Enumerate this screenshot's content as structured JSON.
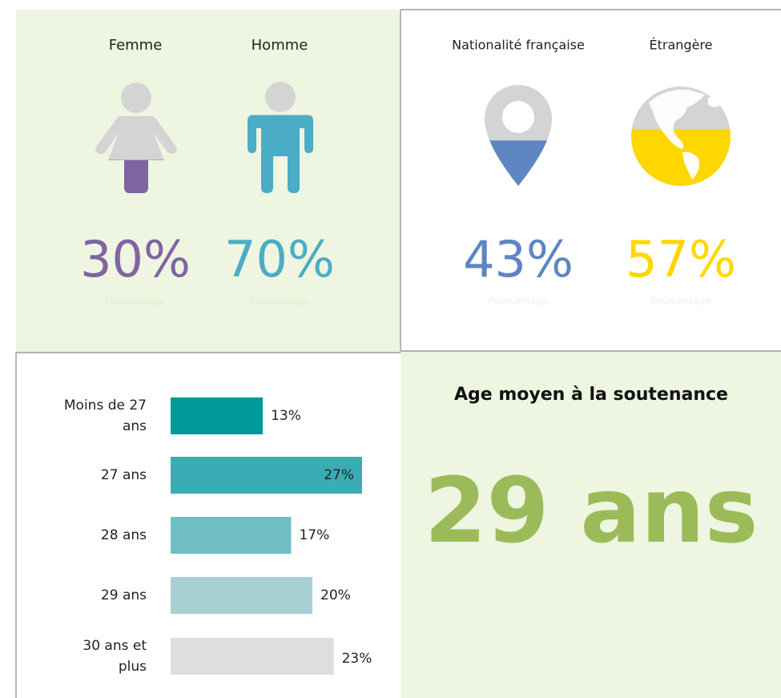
{
  "chart_data": [
    {
      "type": "pictogram",
      "icon": "person",
      "categories": [
        "Femme",
        "Homme"
      ],
      "values": [
        30,
        70
      ],
      "value_labels": [
        "30%",
        "70%"
      ],
      "value_caption": "Pourcentage",
      "colors": [
        "#8064a2",
        "#4bacc6"
      ],
      "ylim": [
        0,
        100
      ]
    },
    {
      "type": "pictogram",
      "icon": "place",
      "categories": [
        "Nationalité française",
        "Étrangère"
      ],
      "values": [
        43,
        57
      ],
      "value_labels": [
        "43%",
        "57%"
      ],
      "value_caption": "Pourcentage",
      "colors": [
        "#5e86c1",
        "#ffd700"
      ],
      "ylim": [
        0,
        100
      ]
    },
    {
      "type": "bar",
      "orientation": "horizontal",
      "categories": [
        "Moins de 27 ans",
        "27 ans",
        "28 ans",
        "29 ans",
        "30 ans et plus"
      ],
      "values": [
        13,
        27,
        17,
        20,
        23
      ],
      "value_labels": [
        "13%",
        "27%",
        "17%",
        "20%",
        "23%"
      ],
      "colors": [
        "#009999",
        "#3aacb4",
        "#6fbfc2",
        "#a8cfd3",
        "#dedede"
      ],
      "xlim": [
        0,
        27
      ]
    }
  ],
  "kpi": {
    "title": "Age moyen à la soutenance",
    "value": "29 ans"
  }
}
